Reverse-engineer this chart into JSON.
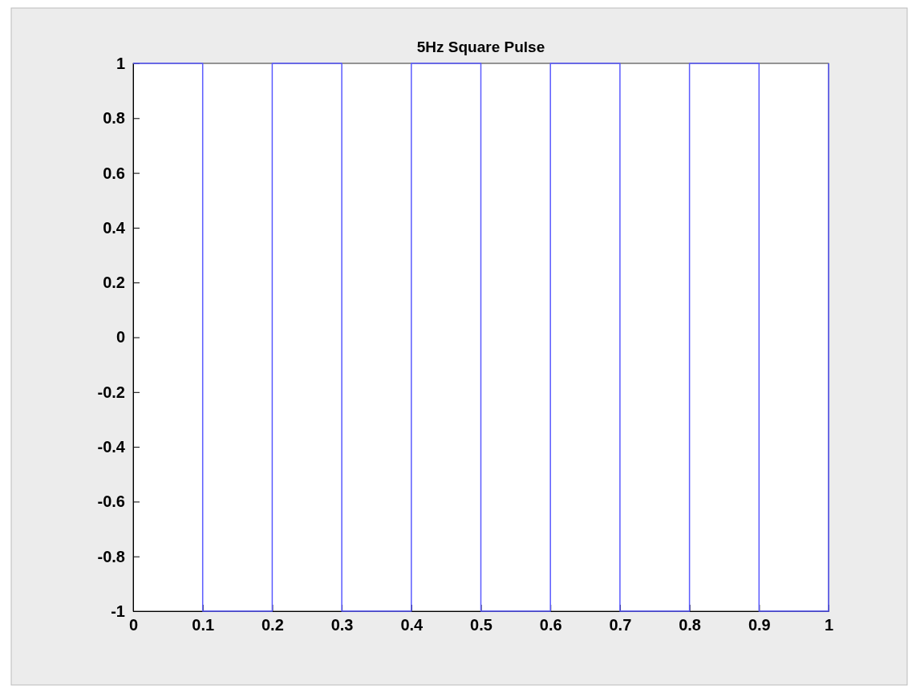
{
  "chart_data": {
    "type": "step",
    "title": "5Hz Square Pulse",
    "x": [
      0,
      0.1,
      0.2,
      0.3,
      0.4,
      0.5,
      0.6,
      0.7,
      0.8,
      0.9,
      1
    ],
    "series": [
      {
        "color": "#5b5bff",
        "values": [
          1,
          -1,
          1,
          -1,
          1,
          -1,
          1,
          -1,
          1,
          -1,
          1
        ]
      }
    ],
    "xlim": [
      0,
      1
    ],
    "ylim": [
      -1,
      1
    ],
    "xticks": [
      0,
      0.1,
      0.2,
      0.3,
      0.4,
      0.5,
      0.6,
      0.7,
      0.8,
      0.9,
      1
    ],
    "yticks": [
      -1,
      -0.8,
      -0.6,
      -0.4,
      -0.2,
      0,
      0.2,
      0.4,
      0.6,
      0.8,
      1
    ],
    "grid": false
  }
}
